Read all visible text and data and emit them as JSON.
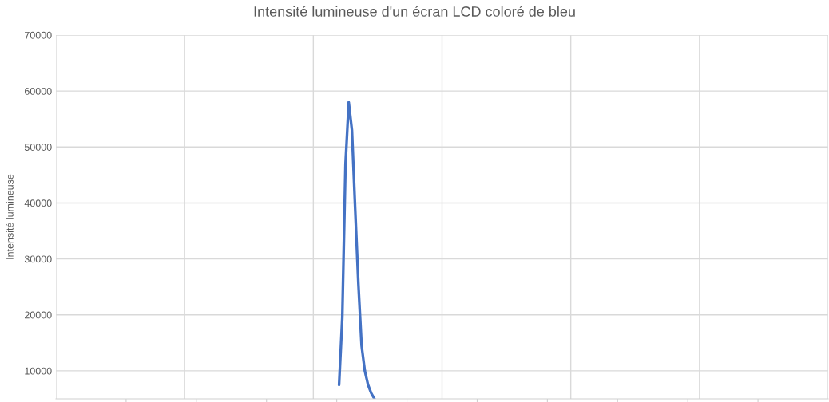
{
  "chart_data": {
    "type": "line",
    "title": "Intensité lumineuse d'un écran LCD coloré de bleu",
    "ylabel": "Intensité lumineuse",
    "categories": [
      null,
      null,
      null,
      null,
      null,
      null,
      null,
      null,
      null,
      null,
      null,
      null,
      null,
      null,
      null,
      null,
      null,
      null,
      null,
      null,
      null,
      null,
      null,
      null,
      null,
      null,
      null,
      null,
      null,
      null,
      null,
      null,
      null,
      null,
      null,
      null,
      null,
      null,
      null,
      null,
      null,
      null,
      null,
      null,
      null,
      null,
      null,
      null,
      null,
      null,
      null,
      null,
      null,
      null,
      null,
      null,
      null,
      null,
      null,
      null,
      null,
      null,
      null,
      null,
      null,
      null,
      null,
      null,
      null,
      null,
      null,
      null,
      null,
      null,
      null,
      null,
      null,
      null,
      null,
      null,
      null,
      null,
      null,
      null,
      null,
      null,
      null,
      null,
      null,
      null,
      null,
      null,
      null,
      null,
      null,
      null,
      null,
      null,
      null,
      null,
      null,
      null,
      null,
      null,
      null,
      null,
      null,
      null,
      null,
      null,
      null,
      null,
      null,
      null,
      null,
      null,
      null,
      null,
      null,
      null,
      null,
      null,
      null,
      null,
      null,
      null,
      null,
      null,
      null,
      null,
      null,
      null,
      null,
      null,
      null,
      null,
      null,
      null,
      null,
      null,
      null,
      null,
      null,
      null,
      null,
      null,
      null,
      null,
      null,
      null,
      null,
      null,
      null,
      null,
      null,
      null,
      null,
      null,
      null,
      null,
      null,
      null,
      null,
      null,
      null,
      null,
      null,
      null,
      null,
      null,
      null,
      null,
      null,
      null,
      null,
      null,
      null,
      null,
      null,
      null,
      null,
      null,
      null,
      null,
      null,
      null,
      null,
      null,
      null,
      null,
      null,
      null,
      null,
      null,
      null,
      null,
      null,
      null,
      null,
      null,
      null,
      null,
      null,
      null,
      null,
      null,
      null,
      null,
      null,
      null,
      null,
      null,
      null,
      null,
      null,
      null,
      null,
      null,
      null,
      null,
      null,
      null,
      null,
      null,
      null,
      null,
      null,
      null,
      null,
      null,
      null,
      null,
      null,
      null,
      null,
      null,
      null,
      null,
      null,
      null,
      null
    ],
    "series": [
      {
        "color": "#4472c4",
        "values": [
          null,
          null,
          null,
          null,
          null,
          null,
          null,
          null,
          null,
          null,
          null,
          null,
          null,
          null,
          null,
          null,
          null,
          null,
          null,
          null,
          null,
          null,
          null,
          null,
          null,
          null,
          null,
          null,
          null,
          null,
          null,
          null,
          null,
          null,
          null,
          null,
          null,
          null,
          null,
          null,
          null,
          null,
          null,
          null,
          null,
          null,
          null,
          null,
          null,
          null,
          null,
          null,
          null,
          null,
          null,
          null,
          null,
          null,
          null,
          null,
          null,
          null,
          null,
          null,
          null,
          null,
          null,
          null,
          null,
          null,
          null,
          null,
          null,
          null,
          null,
          null,
          null,
          null,
          null,
          null,
          null,
          null,
          null,
          null,
          null,
          null,
          null,
          null,
          7500,
          19500,
          47000,
          58000,
          53000,
          39000,
          25500,
          14500,
          10000,
          7500,
          6000,
          5000,
          null,
          null,
          null,
          null,
          null,
          null,
          null,
          null,
          null,
          null,
          null,
          null,
          null,
          null,
          null,
          null,
          null,
          null,
          null,
          null,
          null,
          null,
          null,
          null,
          null,
          null,
          null,
          null,
          null,
          null,
          null,
          null,
          null,
          null,
          null,
          null,
          null,
          null,
          null,
          null,
          null,
          null,
          null,
          null,
          null,
          null,
          null,
          null,
          null,
          null,
          null,
          null,
          null,
          null,
          null,
          null,
          null,
          null,
          null,
          null,
          null,
          null,
          null,
          null,
          null,
          null,
          null,
          null,
          null,
          null,
          null,
          null,
          null,
          null,
          null,
          null,
          null,
          null,
          null,
          null,
          null,
          null,
          null,
          null,
          null,
          null,
          null,
          null,
          null,
          null,
          null,
          null,
          null,
          null,
          null,
          null,
          null,
          null,
          null,
          null,
          null,
          null,
          null,
          null,
          null,
          null,
          null,
          null,
          null,
          null,
          null,
          null,
          null,
          null,
          null,
          null,
          null,
          null,
          null,
          null,
          null,
          null,
          null,
          null,
          null,
          null,
          null,
          null,
          null,
          null,
          null,
          null,
          null,
          null,
          null,
          null,
          null,
          null,
          null,
          null,
          null
        ]
      }
    ],
    "ylim": [
      5000,
      70000
    ],
    "yticks": [
      10000,
      20000,
      30000,
      40000,
      50000,
      60000,
      70000
    ],
    "grid": true,
    "legend": false,
    "marker": "none",
    "line_style": "solid"
  }
}
